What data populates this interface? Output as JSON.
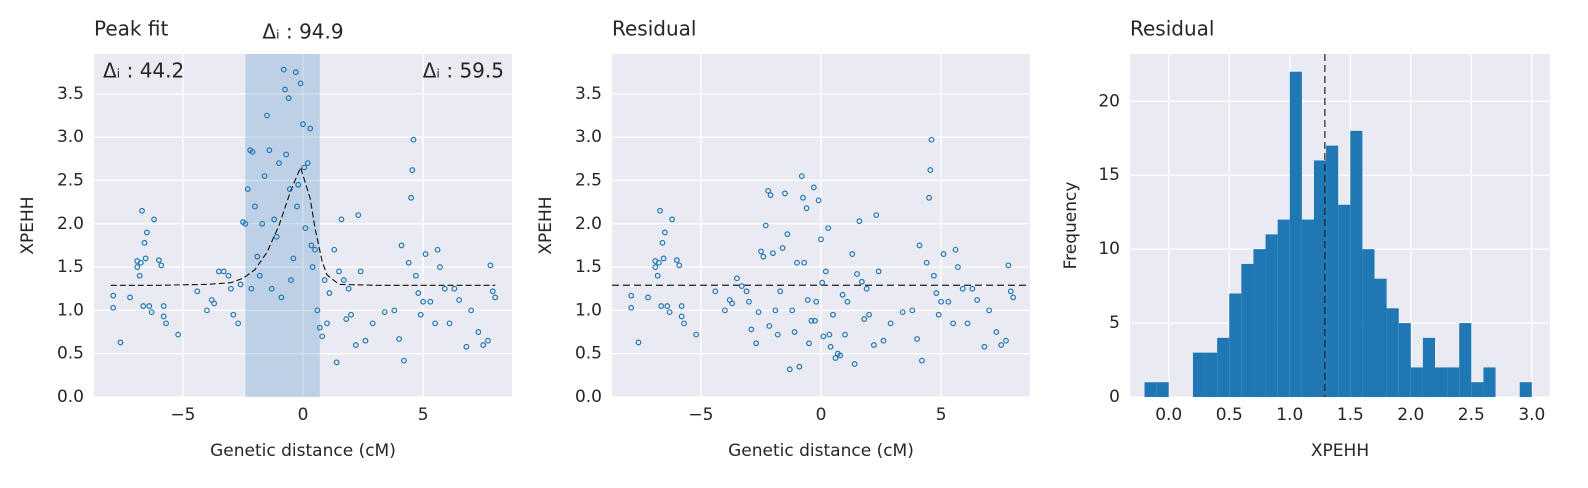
{
  "chart_data": [
    {
      "type": "scatter",
      "title": "Peak fit",
      "xlabel": "Genetic distance (cM)",
      "ylabel": "XPEHH",
      "color": "#1f77b4",
      "grid": true,
      "xlim": [
        -8.7,
        8.7
      ],
      "ylim": [
        0,
        3.96
      ],
      "xticks": [
        {
          "value": -5,
          "label": "−5"
        },
        0,
        5
      ],
      "yticks": [
        {
          "value": 0,
          "label": "0.0"
        },
        0.5,
        {
          "value": 1,
          "label": "1.0"
        },
        1.5,
        {
          "value": 2,
          "label": "2.0"
        },
        2.5,
        {
          "value": 3,
          "label": "3.0"
        },
        3.5
      ],
      "annotations": [
        "Δᵢ : 44.2",
        "Δᵢ : 94.9",
        "Δᵢ : 59.5"
      ],
      "span": [
        -2.4,
        0.7
      ],
      "fit": {
        "x": [
          -8,
          -6,
          -4,
          -3,
          -2.5,
          -2,
          -1.5,
          -1,
          -0.5,
          -0.1,
          0.3,
          0.5,
          0.8,
          1.0,
          1.5,
          3,
          8
        ],
        "values": [
          1.29,
          1.29,
          1.3,
          1.32,
          1.37,
          1.47,
          1.67,
          1.98,
          2.39,
          2.65,
          2.29,
          1.95,
          1.56,
          1.41,
          1.3,
          1.29,
          1.29
        ]
      },
      "x": [
        -7.9,
        -7.9,
        -7.6,
        -7.2,
        -6.9,
        -6.9,
        -6.8,
        -6.75,
        -6.7,
        -6.65,
        -6.6,
        -6.55,
        -6.5,
        -6.4,
        -6.3,
        -6.2,
        -6.0,
        -5.9,
        -5.8,
        -5.8,
        -5.7,
        -5.2,
        -4.4,
        -4.0,
        -3.8,
        -3.7,
        -3.5,
        -3.3,
        -3.1,
        -3.0,
        -2.9,
        -2.7,
        -2.6,
        -2.5,
        -2.4,
        -2.3,
        -2.2,
        -2.15,
        -2.1,
        -2.0,
        -1.9,
        -1.8,
        -1.7,
        -1.6,
        -1.5,
        -1.4,
        -1.3,
        -1.2,
        -1.1,
        -1.0,
        -0.9,
        -0.8,
        -0.75,
        -0.7,
        -0.6,
        -0.55,
        -0.5,
        -0.4,
        -0.3,
        -0.25,
        -0.2,
        -0.1,
        0.0,
        0.05,
        0.1,
        0.2,
        0.3,
        0.35,
        0.4,
        0.5,
        0.6,
        0.7,
        0.8,
        0.9,
        1.0,
        1.1,
        1.3,
        1.4,
        1.5,
        1.6,
        1.7,
        1.8,
        1.9,
        2.0,
        2.2,
        2.3,
        2.4,
        2.6,
        2.9,
        3.4,
        3.8,
        4.0,
        4.1,
        4.2,
        4.4,
        4.5,
        4.55,
        4.6,
        4.7,
        4.8,
        4.9,
        5.0,
        5.1,
        5.3,
        5.5,
        5.6,
        5.7,
        5.9,
        6.1,
        6.3,
        6.5,
        6.8,
        7.0,
        7.3,
        7.5,
        7.7,
        7.8,
        7.9,
        8.0
      ],
      "values": [
        1.03,
        1.17,
        0.63,
        1.15,
        1.5,
        1.57,
        1.4,
        1.55,
        2.15,
        1.05,
        1.78,
        1.6,
        1.9,
        1.05,
        0.98,
        2.05,
        1.58,
        1.52,
        0.93,
        1.05,
        0.85,
        0.72,
        1.22,
        1.0,
        1.12,
        1.08,
        1.45,
        1.45,
        1.4,
        1.25,
        0.95,
        0.85,
        1.3,
        2.02,
        2.0,
        2.4,
        2.85,
        1.25,
        2.83,
        2.2,
        1.62,
        1.4,
        2.0,
        2.55,
        3.25,
        2.85,
        1.25,
        2.05,
        1.85,
        2.7,
        1.15,
        3.78,
        3.55,
        2.8,
        3.45,
        2.4,
        1.35,
        1.6,
        3.75,
        2.2,
        2.45,
        3.62,
        3.15,
        2.65,
        1.95,
        2.7,
        3.1,
        1.75,
        1.5,
        1.7,
        1.0,
        0.8,
        0.7,
        1.35,
        0.85,
        1.2,
        1.7,
        0.4,
        1.45,
        2.05,
        1.35,
        0.9,
        1.25,
        0.95,
        0.6,
        2.1,
        1.45,
        0.65,
        0.85,
        0.98,
        1.0,
        0.67,
        1.75,
        0.42,
        1.55,
        2.3,
        2.62,
        2.97,
        1.4,
        1.2,
        0.95,
        1.1,
        1.65,
        1.1,
        0.85,
        1.7,
        1.5,
        1.25,
        0.85,
        1.25,
        1.12,
        0.58,
        1.0,
        0.75,
        0.6,
        0.65,
        1.52,
        1.22,
        1.15
      ]
    },
    {
      "type": "scatter",
      "title": "Residual",
      "xlabel": "Genetic distance (cM)",
      "ylabel": "XPEHH",
      "color": "#1f77b4",
      "grid": true,
      "xlim": [
        -8.7,
        8.7
      ],
      "ylim": [
        0,
        3.96
      ],
      "xticks": [
        {
          "value": -5,
          "label": "−5"
        },
        0,
        5
      ],
      "yticks": [
        {
          "value": 0,
          "label": "0.0"
        },
        0.5,
        {
          "value": 1,
          "label": "1.0"
        },
        1.5,
        {
          "value": 2,
          "label": "2.0"
        },
        2.5,
        {
          "value": 3,
          "label": "3.0"
        },
        3.5
      ],
      "hline": 1.29,
      "x": [
        -7.9,
        -7.9,
        -7.6,
        -7.2,
        -6.9,
        -6.9,
        -6.8,
        -6.75,
        -6.7,
        -6.65,
        -6.6,
        -6.55,
        -6.5,
        -6.4,
        -6.3,
        -6.2,
        -6.0,
        -5.9,
        -5.8,
        -5.8,
        -5.7,
        -5.2,
        -4.4,
        -4.0,
        -3.8,
        -3.7,
        -3.5,
        -3.3,
        -3.1,
        -3.0,
        -2.9,
        -2.7,
        -2.6,
        -2.5,
        -2.4,
        -2.3,
        -2.2,
        -2.15,
        -2.1,
        -2.0,
        -1.9,
        -1.8,
        -1.7,
        -1.6,
        -1.5,
        -1.4,
        -1.3,
        -1.2,
        -1.1,
        -1.0,
        -0.9,
        -0.8,
        -0.75,
        -0.7,
        -0.6,
        -0.55,
        -0.5,
        -0.4,
        -0.3,
        -0.25,
        -0.2,
        -0.1,
        0.0,
        0.05,
        0.1,
        0.2,
        0.3,
        0.35,
        0.4,
        0.5,
        0.6,
        0.7,
        0.8,
        0.9,
        1.0,
        1.1,
        1.3,
        1.4,
        1.5,
        1.6,
        1.7,
        1.8,
        1.9,
        2.0,
        2.2,
        2.3,
        2.4,
        2.6,
        2.9,
        3.4,
        3.8,
        4.0,
        4.1,
        4.2,
        4.4,
        4.5,
        4.55,
        4.6,
        4.7,
        4.8,
        4.9,
        5.0,
        5.1,
        5.3,
        5.5,
        5.6,
        5.7,
        5.9,
        6.1,
        6.3,
        6.5,
        6.8,
        7.0,
        7.3,
        7.5,
        7.7,
        7.8,
        7.9,
        8.0
      ],
      "values": [
        1.03,
        1.17,
        0.63,
        1.15,
        1.5,
        1.57,
        1.4,
        1.55,
        2.15,
        1.05,
        1.78,
        1.6,
        1.9,
        1.05,
        0.98,
        2.05,
        1.58,
        1.52,
        0.93,
        1.05,
        0.85,
        0.72,
        1.22,
        1.0,
        1.12,
        1.08,
        1.37,
        1.28,
        1.22,
        1.1,
        0.78,
        0.62,
        0.98,
        1.68,
        1.62,
        1.98,
        2.38,
        0.82,
        2.33,
        1.66,
        1.0,
        0.72,
        1.22,
        1.72,
        2.35,
        1.88,
        0.32,
        1.0,
        0.75,
        1.55,
        0.35,
        2.55,
        2.3,
        1.55,
        2.18,
        1.12,
        0.62,
        0.88,
        2.42,
        0.88,
        1.1,
        2.27,
        1.82,
        1.32,
        0.7,
        1.45,
        1.95,
        0.72,
        0.58,
        0.95,
        0.45,
        0.5,
        0.48,
        1.18,
        0.72,
        1.1,
        1.65,
        0.38,
        1.42,
        2.03,
        1.33,
        0.9,
        1.25,
        0.95,
        0.6,
        2.1,
        1.45,
        0.65,
        0.85,
        0.98,
        1.0,
        0.67,
        1.75,
        0.42,
        1.55,
        2.3,
        2.62,
        2.97,
        1.4,
        1.2,
        0.95,
        1.1,
        1.65,
        1.1,
        0.85,
        1.7,
        1.5,
        1.25,
        0.85,
        1.25,
        1.12,
        0.58,
        1.0,
        0.75,
        0.6,
        0.65,
        1.52,
        1.22,
        1.15
      ]
    },
    {
      "type": "histogram",
      "title": "Residual",
      "xlabel": "XPEHH",
      "ylabel": "Frequency",
      "color": "#1f77b4",
      "grid": true,
      "xlim": [
        -0.32,
        3.15
      ],
      "ylim": [
        0,
        23.2
      ],
      "xticks": [
        {
          "value": 0,
          "label": "0.0"
        },
        0.5,
        {
          "value": 1,
          "label": "1.0"
        },
        1.5,
        {
          "value": 2,
          "label": "2.0"
        },
        2.5,
        {
          "value": 3,
          "label": "3.0"
        }
      ],
      "yticks": [
        0,
        5,
        10,
        15,
        20
      ],
      "vline": 1.29,
      "bins": [
        -0.2,
        -0.1,
        0,
        0.1,
        0.2,
        0.3,
        0.4,
        0.5,
        0.6,
        0.7,
        0.8,
        0.9,
        1.0,
        1.1,
        1.2,
        1.3,
        1.4,
        1.5,
        1.6,
        1.7,
        1.8,
        1.9,
        2.0,
        2.1,
        2.2,
        2.3,
        2.4,
        2.5,
        2.6,
        2.7,
        2.8,
        2.9,
        3.0
      ],
      "counts": [
        1,
        1,
        0,
        0,
        3,
        3,
        4,
        7,
        9,
        10,
        11,
        12,
        22,
        12,
        16,
        17,
        13,
        18,
        10,
        8,
        6,
        5,
        2,
        4,
        2,
        2,
        5,
        1,
        2,
        0,
        0,
        1
      ]
    }
  ]
}
